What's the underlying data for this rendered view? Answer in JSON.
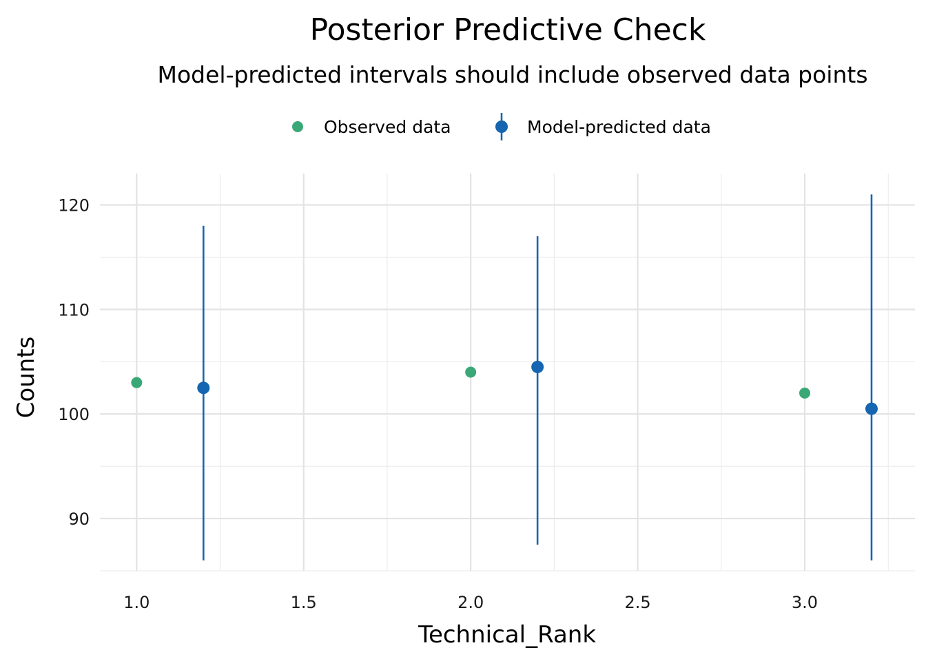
{
  "chart_data": {
    "type": "scatter",
    "title": "Posterior Predictive Check",
    "subtitle": "Model-predicted intervals should include observed data points",
    "xlabel": "Technical_Rank",
    "ylabel": "Counts",
    "xlim": [
      0.89,
      3.33
    ],
    "ylim": [
      85,
      123
    ],
    "x_ticks": [
      1.0,
      1.5,
      2.0,
      2.5,
      3.0
    ],
    "x_tick_labels": [
      "1.0",
      "1.5",
      "2.0",
      "2.5",
      "3.0"
    ],
    "y_ticks": [
      90,
      100,
      110,
      120
    ],
    "y_tick_labels": [
      "90",
      "100",
      "110",
      "120"
    ],
    "grid": true,
    "legend_position": "top",
    "series": [
      {
        "name": "Observed data",
        "color": "#3aa876",
        "marker": "point",
        "points": [
          {
            "x": 1.0,
            "y": 103
          },
          {
            "x": 2.0,
            "y": 104
          },
          {
            "x": 3.0,
            "y": 102
          }
        ]
      },
      {
        "name": "Model-predicted data",
        "color": "#1565b0",
        "marker": "pointrange",
        "points": [
          {
            "x": 1.2,
            "y": 102.5,
            "ymin": 86.0,
            "ymax": 118.0
          },
          {
            "x": 2.2,
            "y": 104.5,
            "ymin": 87.5,
            "ymax": 117.0
          },
          {
            "x": 3.2,
            "y": 100.5,
            "ymin": 86.0,
            "ymax": 121.0
          }
        ]
      }
    ]
  }
}
